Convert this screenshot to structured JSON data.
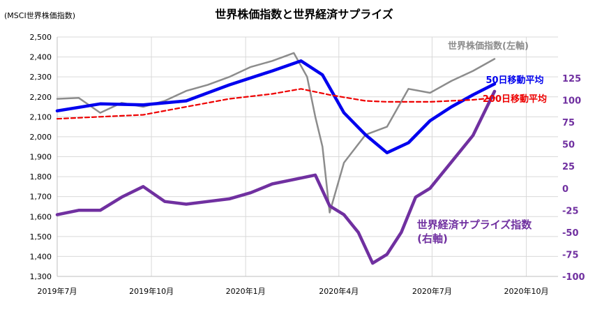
{
  "chart_data": {
    "type": "line",
    "title": "世界株価指数と世界経済サプライズ",
    "unit_note": "(MSCI世界株価指数)",
    "x_ticks": [
      "2019年7月",
      "2019年10月",
      "2020年1月",
      "2020年4月",
      "2020年7月",
      "2020年10月"
    ],
    "x_range_months": [
      "2019-07",
      "2020-11"
    ],
    "y_left": {
      "min": 1300,
      "max": 2500,
      "step": 100,
      "ticks": [
        "1,300",
        "1,400",
        "1,500",
        "1,600",
        "1,700",
        "1,800",
        "1,900",
        "2,000",
        "2,100",
        "2,200",
        "2,300",
        "2,400",
        "2,500"
      ]
    },
    "y_right": {
      "min": -100,
      "max": 125,
      "step": 25,
      "ticks": [
        "-100",
        "-75",
        "-50",
        "-25",
        "0",
        "25",
        "50",
        "75",
        "100",
        "125"
      ]
    },
    "grid": true,
    "series": [
      {
        "name": "世界株価指数(左軸)",
        "axis": "left",
        "color": "#8c8c8c",
        "x": [
          "2019-07-01",
          "2019-07-22",
          "2019-08-12",
          "2019-09-02",
          "2019-09-23",
          "2019-10-14",
          "2019-11-04",
          "2019-11-25",
          "2019-12-16",
          "2020-01-06",
          "2020-01-27",
          "2020-02-17",
          "2020-03-01",
          "2020-03-09",
          "2020-03-16",
          "2020-03-23",
          "2020-04-06",
          "2020-04-27",
          "2020-05-18",
          "2020-06-08",
          "2020-06-29",
          "2020-07-20",
          "2020-08-10",
          "2020-08-31"
        ],
        "values": [
          2190,
          2195,
          2120,
          2170,
          2150,
          2180,
          2230,
          2260,
          2300,
          2350,
          2380,
          2420,
          2300,
          2100,
          1950,
          1620,
          1870,
          2010,
          2050,
          2240,
          2220,
          2280,
          2330,
          2390
        ]
      },
      {
        "name": "50日移動平均",
        "axis": "left",
        "color": "#0000ee",
        "x": [
          "2019-07-01",
          "2019-08-12",
          "2019-09-23",
          "2019-11-04",
          "2019-12-16",
          "2020-01-27",
          "2020-02-24",
          "2020-03-16",
          "2020-04-06",
          "2020-04-27",
          "2020-05-18",
          "2020-06-08",
          "2020-06-29",
          "2020-07-20",
          "2020-08-10",
          "2020-08-31"
        ],
        "values": [
          2130,
          2165,
          2160,
          2180,
          2260,
          2330,
          2380,
          2310,
          2120,
          2010,
          1920,
          1970,
          2080,
          2150,
          2210,
          2265
        ]
      },
      {
        "name": "200日移動平均",
        "axis": "left",
        "color": "#ee0000",
        "x": [
          "2019-07-01",
          "2019-08-12",
          "2019-09-23",
          "2019-11-04",
          "2019-12-16",
          "2020-01-27",
          "2020-02-24",
          "2020-03-23",
          "2020-04-27",
          "2020-05-18",
          "2020-06-29",
          "2020-08-10",
          "2020-08-31"
        ],
        "values": [
          2090,
          2100,
          2110,
          2150,
          2190,
          2215,
          2240,
          2210,
          2180,
          2175,
          2175,
          2185,
          2195
        ]
      },
      {
        "name": "世界経済サプライズ指数(右軸)",
        "axis": "right",
        "color": "#7030a0",
        "x": [
          "2019-07-01",
          "2019-07-22",
          "2019-08-12",
          "2019-09-02",
          "2019-09-23",
          "2019-10-14",
          "2019-11-04",
          "2019-11-25",
          "2019-12-16",
          "2020-01-06",
          "2020-01-27",
          "2020-02-17",
          "2020-03-09",
          "2020-03-23",
          "2020-04-06",
          "2020-04-20",
          "2020-05-04",
          "2020-05-18",
          "2020-06-01",
          "2020-06-15",
          "2020-06-29",
          "2020-07-20",
          "2020-08-10",
          "2020-08-31"
        ],
        "values": [
          -30,
          -25,
          -25,
          -10,
          2,
          -15,
          -18,
          -15,
          -12,
          -5,
          5,
          10,
          15,
          -20,
          -30,
          -50,
          -85,
          -75,
          -50,
          -10,
          0,
          30,
          60,
          110
        ]
      }
    ]
  }
}
